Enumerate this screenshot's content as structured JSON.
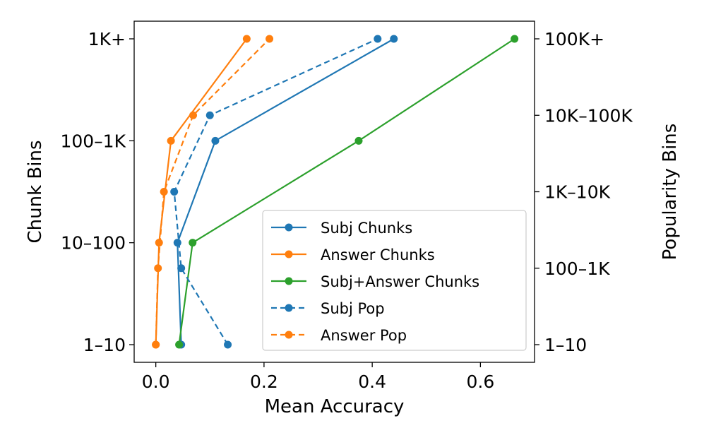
{
  "chart_data": {
    "type": "line",
    "xlabel": "Mean Accuracy",
    "ylabel_left": "Chunk Bins",
    "ylabel_right": "Popularity Bins",
    "xlim": [
      -0.04,
      0.7
    ],
    "x_ticks": [
      0.0,
      0.2,
      0.4,
      0.6
    ],
    "x_tick_labels": [
      "0.0",
      "0.2",
      "0.4",
      "0.6"
    ],
    "y_left_categories": [
      "1–10",
      "10–100",
      "100–1K",
      "1K+"
    ],
    "y_right_categories": [
      "1–10",
      "100–1K",
      "1K–10K",
      "10K–100K",
      "100K+"
    ],
    "legend_position": "lower-right",
    "grid": false,
    "series": [
      {
        "name": "Subj Chunks",
        "axis": "left",
        "style": "solid",
        "color": "#1f77b4",
        "values": [
          0.047,
          0.04,
          0.11,
          0.44
        ]
      },
      {
        "name": "Answer Chunks",
        "axis": "left",
        "style": "solid",
        "color": "#ff7f0e",
        "values": [
          0.0,
          0.006,
          0.028,
          0.168
        ]
      },
      {
        "name": "Subj+Answer Chunks",
        "axis": "left",
        "style": "solid",
        "color": "#2ca02c",
        "values": [
          0.043,
          0.068,
          0.375,
          0.663
        ]
      },
      {
        "name": "Subj Pop",
        "axis": "right",
        "style": "dashed",
        "color": "#1f77b4",
        "values": [
          0.133,
          0.047,
          0.034,
          0.1,
          0.41
        ]
      },
      {
        "name": "Answer Pop",
        "axis": "right",
        "style": "dashed",
        "color": "#ff7f0e",
        "values": [
          0.0,
          0.004,
          0.015,
          0.069,
          0.21
        ]
      }
    ]
  }
}
